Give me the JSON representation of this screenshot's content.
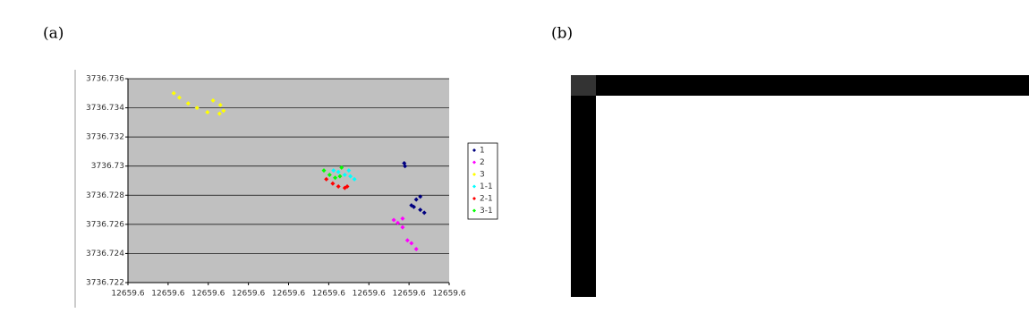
{
  "labels": [
    "(a)",
    "(b)"
  ],
  "chart_data": {
    "type": "scatter",
    "xlim": [
      12659.58,
      12659.62
    ],
    "xticks": [
      {
        "value": 12659.58,
        "label": "12659.6"
      },
      {
        "value": 12659.585,
        "label": "12659.6"
      },
      {
        "value": 12659.59,
        "label": "12659.6"
      },
      {
        "value": 12659.595,
        "label": "12659.6"
      },
      {
        "value": 12659.6,
        "label": "12659.6"
      },
      {
        "value": 12659.605,
        "label": "12659.6"
      },
      {
        "value": 12659.61,
        "label": "12659.6"
      },
      {
        "value": 12659.615,
        "label": "12659.6"
      },
      {
        "value": 12659.62,
        "label": "12659.6"
      }
    ],
    "ylim": [
      3736.722,
      3736.736
    ],
    "yticks": [
      3736.722,
      3736.724,
      3736.726,
      3736.728,
      3736.73,
      3736.732,
      3736.734,
      3736.736
    ],
    "grid": true,
    "legend": "right",
    "series": [
      {
        "name": "1",
        "color": "#000080",
        "x": [
          12659.6144,
          12659.6145,
          12659.6153,
          12659.6159,
          12659.6164,
          12659.6156,
          12659.6164,
          12659.6169
        ],
        "values": [
          3736.7302,
          3736.73,
          3736.7273,
          3736.7277,
          3736.7279,
          3736.7272,
          3736.727,
          3736.7268
        ]
      },
      {
        "name": "2",
        "color": "#ff00ff",
        "x": [
          12659.6131,
          12659.6136,
          12659.6142,
          12659.6148,
          12659.6153,
          12659.6159,
          12659.6142
        ],
        "values": [
          3736.7263,
          3736.7261,
          3736.7258,
          3736.7249,
          3736.7247,
          3736.7243,
          3736.7264
        ]
      },
      {
        "name": "3",
        "color": "#ffff00",
        "x": [
          12659.5857,
          12659.5864,
          12659.5875,
          12659.5886,
          12659.5899,
          12659.5914,
          12659.5919,
          12659.5915,
          12659.5906
        ],
        "values": [
          3736.735,
          3736.7347,
          3736.7343,
          3736.734,
          3736.7337,
          3736.7336,
          3736.7338,
          3736.7342,
          3736.7345
        ]
      },
      {
        "name": "1-1",
        "color": "#00ffff",
        "x": [
          12659.6056,
          12659.6062,
          12659.607,
          12659.6075,
          12659.6082,
          12659.6077
        ],
        "values": [
          3736.7297,
          3736.7296,
          3736.7294,
          3736.7297,
          3736.7291,
          3736.7293
        ]
      },
      {
        "name": "2-1",
        "color": "#ff0000",
        "x": [
          12659.6047,
          12659.6055,
          12659.6062,
          12659.607,
          12659.6073
        ],
        "values": [
          3736.7291,
          3736.7288,
          3736.7286,
          3736.7285,
          3736.7286
        ]
      },
      {
        "name": "3-1",
        "color": "#00ff00",
        "x": [
          12659.6044,
          12659.6051,
          12659.6058,
          12659.6064,
          12659.6066
        ],
        "values": [
          3736.7297,
          3736.7294,
          3736.7292,
          3736.7293,
          3736.7299
        ]
      }
    ]
  }
}
